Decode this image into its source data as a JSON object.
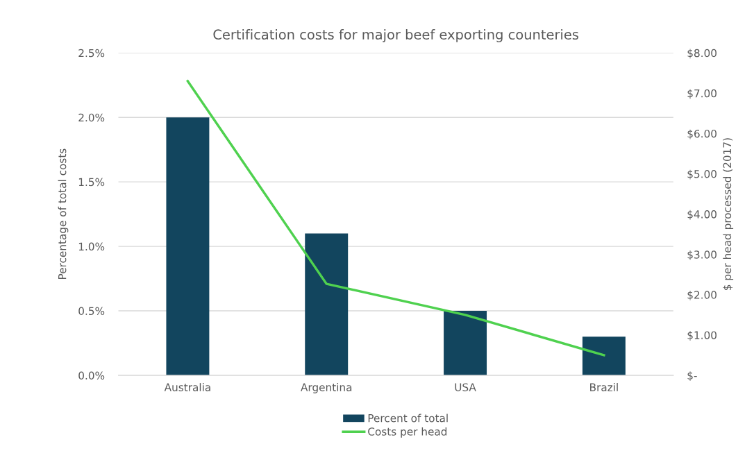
{
  "chart_data": {
    "type": "bar",
    "title": "Certification costs for major beef exporting counteries",
    "categories": [
      "Australia",
      "Argentina",
      "USA",
      "Brazil"
    ],
    "series": [
      {
        "name": "Percent of total",
        "color": "#12455e",
        "values": [
          2.0,
          1.1,
          0.5,
          0.3
        ]
      },
      {
        "name": "Costs per head",
        "type": "line",
        "axis": "y2",
        "color": "#4fd14f",
        "values": [
          7.3,
          2.27,
          1.5,
          0.5
        ]
      }
    ],
    "ylabel": "Percentage of total costs",
    "y2label": "$ per head processed (2017)",
    "ylim": [
      0,
      2.5
    ],
    "yticks": [
      {
        "value": 0,
        "label": "0.0%"
      },
      {
        "value": 0.5,
        "label": "0.5%"
      },
      {
        "value": 1.0,
        "label": "1.0%"
      },
      {
        "value": 1.5,
        "label": "1.5%"
      },
      {
        "value": 2.0,
        "label": "2.0%"
      },
      {
        "value": 2.5,
        "label": "2.5%"
      }
    ],
    "y2lim": [
      0,
      8
    ],
    "y2ticks": [
      {
        "value": 0,
        "label": "$-"
      },
      {
        "value": 1,
        "label": "$1.00"
      },
      {
        "value": 2,
        "label": "$2.00"
      },
      {
        "value": 3,
        "label": "$3.00"
      },
      {
        "value": 4,
        "label": "$4.00"
      },
      {
        "value": 5,
        "label": "$5.00"
      },
      {
        "value": 6,
        "label": "$6.00"
      },
      {
        "value": 7,
        "label": "$7.00"
      },
      {
        "value": 8,
        "label": "$8.00"
      }
    ],
    "grid": "y",
    "legend": "bottom"
  }
}
